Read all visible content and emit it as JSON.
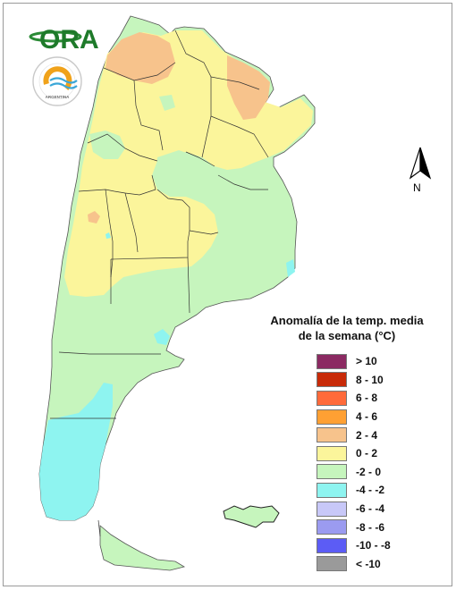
{
  "logo": {
    "brand_text": "ORA",
    "seal_inner_text": "SERVICIO METEOROLÓGICO NACIONAL",
    "seal_country_text": "ARGENTINA"
  },
  "north_arrow": {
    "label": "N",
    "icon": "north-arrow-icon"
  },
  "legend": {
    "title_line1": "Anomalía de la temp. media",
    "title_line2": "de la semana (°C)",
    "classes": [
      {
        "label": "> 10",
        "color": "#8b2a62"
      },
      {
        "label": "8 - 10",
        "color": "#c82a08"
      },
      {
        "label": "6 - 8",
        "color": "#ff6a3a"
      },
      {
        "label": "4 - 6",
        "color": "#ffa033"
      },
      {
        "label": "2 - 4",
        "color": "#f7c38c"
      },
      {
        "label": "0 - 2",
        "color": "#fbf59b"
      },
      {
        "label": "-2 - 0",
        "color": "#c6f5bd"
      },
      {
        "label": "-4 - -2",
        "color": "#8ef4f0"
      },
      {
        "label": "-6 - -4",
        "color": "#c8c8f8"
      },
      {
        "label": "-8 - -6",
        "color": "#9b9bf0"
      },
      {
        "label": "-10 - -8",
        "color": "#5c5cf5"
      },
      {
        "label": "< -10",
        "color": "#9a9a9a"
      }
    ]
  }
}
